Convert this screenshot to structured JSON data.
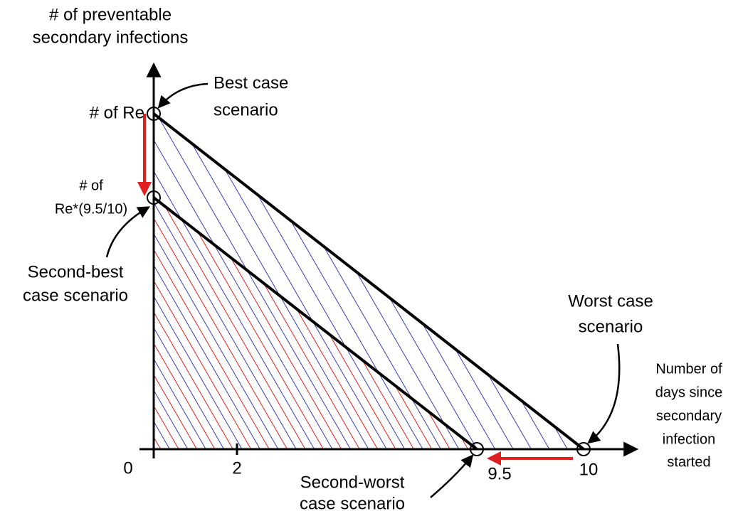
{
  "y_axis": {
    "label_lines": [
      "# of preventable",
      "secondary infections"
    ]
  },
  "x_axis": {
    "label_lines": [
      "Number of",
      "days since",
      "secondary",
      "infection",
      "started"
    ],
    "ticks": [
      0,
      2,
      9.5,
      10
    ]
  },
  "points": {
    "best_label": "# of Re",
    "second_best_label_lines": [
      "# of",
      "Re*(9.5/10)"
    ]
  },
  "annotations": {
    "best": [
      "Best case",
      "scenario"
    ],
    "second_best": [
      "Second-best",
      "case scenario"
    ],
    "worst": [
      "Worst case",
      "scenario"
    ],
    "second_worst": [
      "Second-worst",
      "case scenario"
    ]
  }
}
